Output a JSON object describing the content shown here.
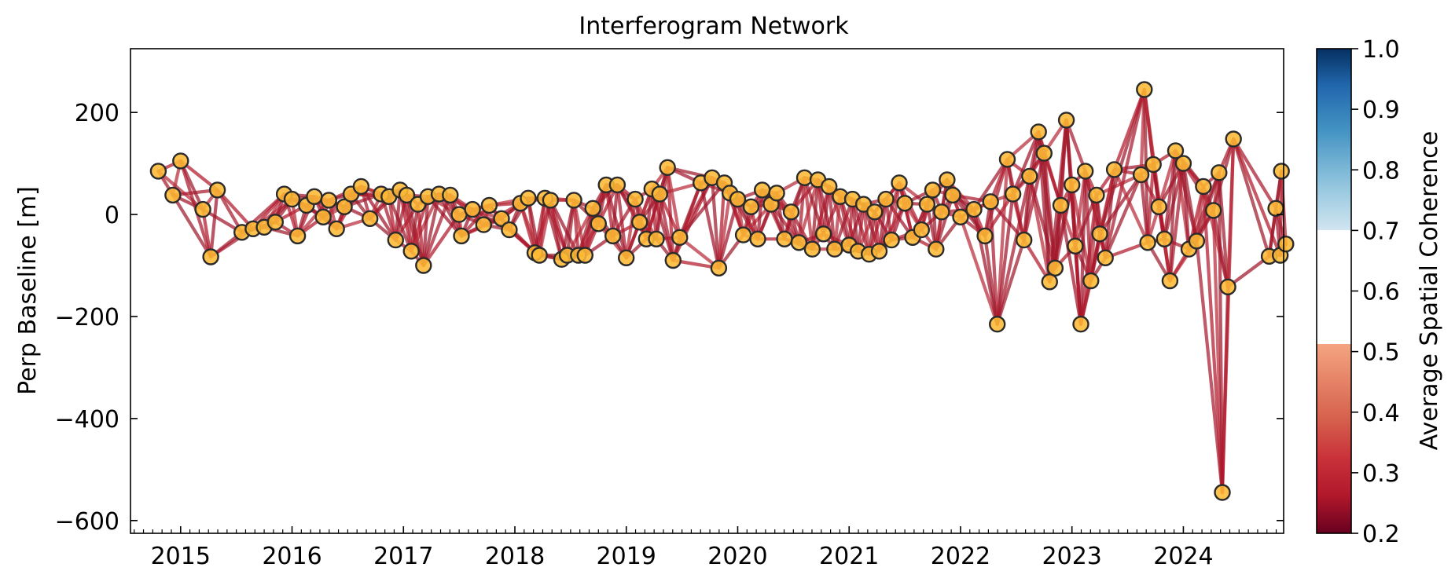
{
  "chart_data": {
    "type": "scatter",
    "title": "Interferogram Network",
    "xlabel": "",
    "ylabel": "Perp Baseline [m]",
    "xlim": [
      2014.55,
      2024.9
    ],
    "ylim": [
      -625,
      325
    ],
    "xticks": [
      2015,
      2016,
      2017,
      2018,
      2019,
      2020,
      2021,
      2022,
      2023,
      2024
    ],
    "xtick_labels": [
      "2015",
      "2016",
      "2017",
      "2018",
      "2019",
      "2020",
      "2021",
      "2022",
      "2023",
      "2024"
    ],
    "yticks": [
      200,
      0,
      -200,
      -400,
      -600
    ],
    "ytick_labels": [
      "200",
      "0",
      "−200",
      "−400",
      "−600"
    ],
    "colorbar": {
      "label": "Average Spatial Coherence",
      "range": [
        0.2,
        1.0
      ],
      "ticks": [
        1.0,
        0.9,
        0.8,
        0.7,
        0.6,
        0.5,
        0.4,
        0.3,
        0.2
      ],
      "tick_labels": [
        "1.0",
        "0.9",
        "0.8",
        "0.7",
        "0.6",
        "0.5",
        "0.4",
        "0.3",
        "0.2"
      ],
      "colormap": "RdBu",
      "visible_from": 0.2,
      "visible_to": 0.7
    },
    "acquisitions": [
      {
        "t": 2014.8,
        "b": 85
      },
      {
        "t": 2014.93,
        "b": 38
      },
      {
        "t": 2015.0,
        "b": 105
      },
      {
        "t": 2015.2,
        "b": 10
      },
      {
        "t": 2015.27,
        "b": -83
      },
      {
        "t": 2015.33,
        "b": 48
      },
      {
        "t": 2015.55,
        "b": -35
      },
      {
        "t": 2015.65,
        "b": -28
      },
      {
        "t": 2015.75,
        "b": -25
      },
      {
        "t": 2015.85,
        "b": -15
      },
      {
        "t": 2015.93,
        "b": 40
      },
      {
        "t": 2016.0,
        "b": 30
      },
      {
        "t": 2016.05,
        "b": -42
      },
      {
        "t": 2016.13,
        "b": 18
      },
      {
        "t": 2016.2,
        "b": 35
      },
      {
        "t": 2016.28,
        "b": -5
      },
      {
        "t": 2016.33,
        "b": 28
      },
      {
        "t": 2016.4,
        "b": -28
      },
      {
        "t": 2016.47,
        "b": 15
      },
      {
        "t": 2016.53,
        "b": 40
      },
      {
        "t": 2016.62,
        "b": 55
      },
      {
        "t": 2016.7,
        "b": -8
      },
      {
        "t": 2016.8,
        "b": 40
      },
      {
        "t": 2016.87,
        "b": 35
      },
      {
        "t": 2016.93,
        "b": -50
      },
      {
        "t": 2016.97,
        "b": 48
      },
      {
        "t": 2017.03,
        "b": 38
      },
      {
        "t": 2017.07,
        "b": -72
      },
      {
        "t": 2017.13,
        "b": 20
      },
      {
        "t": 2017.18,
        "b": -100
      },
      {
        "t": 2017.22,
        "b": 35
      },
      {
        "t": 2017.32,
        "b": 40
      },
      {
        "t": 2017.42,
        "b": 38
      },
      {
        "t": 2017.5,
        "b": 0
      },
      {
        "t": 2017.52,
        "b": -42
      },
      {
        "t": 2017.62,
        "b": 10
      },
      {
        "t": 2017.72,
        "b": -20
      },
      {
        "t": 2017.77,
        "b": 18
      },
      {
        "t": 2017.88,
        "b": -8
      },
      {
        "t": 2017.95,
        "b": -30
      },
      {
        "t": 2018.05,
        "b": 22
      },
      {
        "t": 2018.12,
        "b": 32
      },
      {
        "t": 2018.18,
        "b": -75
      },
      {
        "t": 2018.22,
        "b": -80
      },
      {
        "t": 2018.27,
        "b": 32
      },
      {
        "t": 2018.32,
        "b": 28
      },
      {
        "t": 2018.42,
        "b": -88
      },
      {
        "t": 2018.47,
        "b": -80
      },
      {
        "t": 2018.53,
        "b": 28
      },
      {
        "t": 2018.57,
        "b": -80
      },
      {
        "t": 2018.63,
        "b": -80
      },
      {
        "t": 2018.7,
        "b": 12
      },
      {
        "t": 2018.75,
        "b": -18
      },
      {
        "t": 2018.82,
        "b": 58
      },
      {
        "t": 2018.88,
        "b": -42
      },
      {
        "t": 2018.92,
        "b": 58
      },
      {
        "t": 2019.0,
        "b": -85
      },
      {
        "t": 2019.08,
        "b": 30
      },
      {
        "t": 2019.12,
        "b": -15
      },
      {
        "t": 2019.18,
        "b": -48
      },
      {
        "t": 2019.23,
        "b": 50
      },
      {
        "t": 2019.27,
        "b": -48
      },
      {
        "t": 2019.3,
        "b": 40
      },
      {
        "t": 2019.37,
        "b": 92
      },
      {
        "t": 2019.42,
        "b": -90
      },
      {
        "t": 2019.48,
        "b": -45
      },
      {
        "t": 2019.67,
        "b": 62
      },
      {
        "t": 2019.77,
        "b": 72
      },
      {
        "t": 2019.83,
        "b": -105
      },
      {
        "t": 2019.88,
        "b": 62
      },
      {
        "t": 2019.93,
        "b": 42
      },
      {
        "t": 2020.0,
        "b": 30
      },
      {
        "t": 2020.05,
        "b": -40
      },
      {
        "t": 2020.12,
        "b": 15
      },
      {
        "t": 2020.18,
        "b": -48
      },
      {
        "t": 2020.22,
        "b": 48
      },
      {
        "t": 2020.3,
        "b": 20
      },
      {
        "t": 2020.35,
        "b": 42
      },
      {
        "t": 2020.42,
        "b": -48
      },
      {
        "t": 2020.48,
        "b": 5
      },
      {
        "t": 2020.55,
        "b": -55
      },
      {
        "t": 2020.6,
        "b": 72
      },
      {
        "t": 2020.67,
        "b": -68
      },
      {
        "t": 2020.72,
        "b": 68
      },
      {
        "t": 2020.77,
        "b": -38
      },
      {
        "t": 2020.82,
        "b": 55
      },
      {
        "t": 2020.87,
        "b": -68
      },
      {
        "t": 2020.92,
        "b": 35
      },
      {
        "t": 2021.0,
        "b": -60
      },
      {
        "t": 2021.03,
        "b": 30
      },
      {
        "t": 2021.08,
        "b": -72
      },
      {
        "t": 2021.13,
        "b": 20
      },
      {
        "t": 2021.18,
        "b": -78
      },
      {
        "t": 2021.23,
        "b": 5
      },
      {
        "t": 2021.27,
        "b": -72
      },
      {
        "t": 2021.33,
        "b": 30
      },
      {
        "t": 2021.38,
        "b": -50
      },
      {
        "t": 2021.45,
        "b": 62
      },
      {
        "t": 2021.5,
        "b": 22
      },
      {
        "t": 2021.57,
        "b": -45
      },
      {
        "t": 2021.65,
        "b": -30
      },
      {
        "t": 2021.7,
        "b": 20
      },
      {
        "t": 2021.75,
        "b": 48
      },
      {
        "t": 2021.78,
        "b": -68
      },
      {
        "t": 2021.83,
        "b": 5
      },
      {
        "t": 2021.88,
        "b": 68
      },
      {
        "t": 2021.93,
        "b": 38
      },
      {
        "t": 2022.0,
        "b": -5
      },
      {
        "t": 2022.12,
        "b": 10
      },
      {
        "t": 2022.22,
        "b": -42
      },
      {
        "t": 2022.27,
        "b": 25
      },
      {
        "t": 2022.33,
        "b": -215
      },
      {
        "t": 2022.42,
        "b": 108
      },
      {
        "t": 2022.47,
        "b": 40
      },
      {
        "t": 2022.57,
        "b": -50
      },
      {
        "t": 2022.62,
        "b": 75
      },
      {
        "t": 2022.7,
        "b": 162
      },
      {
        "t": 2022.75,
        "b": 120
      },
      {
        "t": 2022.8,
        "b": -132
      },
      {
        "t": 2022.85,
        "b": -105
      },
      {
        "t": 2022.9,
        "b": 18
      },
      {
        "t": 2022.95,
        "b": 185
      },
      {
        "t": 2023.0,
        "b": 58
      },
      {
        "t": 2023.03,
        "b": -62
      },
      {
        "t": 2023.08,
        "b": -215
      },
      {
        "t": 2023.12,
        "b": 85
      },
      {
        "t": 2023.17,
        "b": -130
      },
      {
        "t": 2023.22,
        "b": 38
      },
      {
        "t": 2023.25,
        "b": -38
      },
      {
        "t": 2023.3,
        "b": -85
      },
      {
        "t": 2023.38,
        "b": 88
      },
      {
        "t": 2023.62,
        "b": 78
      },
      {
        "t": 2023.65,
        "b": 245
      },
      {
        "t": 2023.68,
        "b": -55
      },
      {
        "t": 2023.73,
        "b": 98
      },
      {
        "t": 2023.78,
        "b": 15
      },
      {
        "t": 2023.83,
        "b": -48
      },
      {
        "t": 2023.88,
        "b": -130
      },
      {
        "t": 2023.93,
        "b": 125
      },
      {
        "t": 2024.0,
        "b": 100
      },
      {
        "t": 2024.05,
        "b": -68
      },
      {
        "t": 2024.12,
        "b": -52
      },
      {
        "t": 2024.18,
        "b": 55
      },
      {
        "t": 2024.27,
        "b": 8
      },
      {
        "t": 2024.32,
        "b": 82
      },
      {
        "t": 2024.35,
        "b": -545
      },
      {
        "t": 2024.4,
        "b": -142
      },
      {
        "t": 2024.45,
        "b": 148
      },
      {
        "t": 2024.77,
        "b": -82
      },
      {
        "t": 2024.83,
        "b": 12
      },
      {
        "t": 2024.87,
        "b": -80
      },
      {
        "t": 2024.88,
        "b": 85
      },
      {
        "t": 2024.92,
        "b": -58
      }
    ]
  }
}
